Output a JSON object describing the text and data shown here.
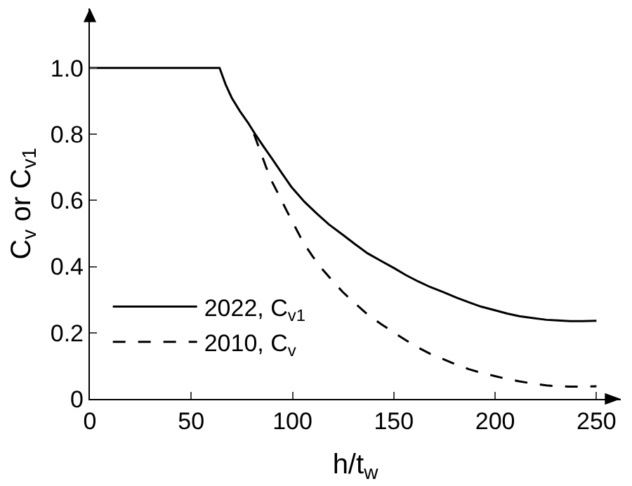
{
  "chart_data": {
    "type": "line",
    "xlabel": "h/t$_{w}$",
    "ylabel": "C$_{v}$ or C$_{v1}$",
    "xlim": [
      0,
      262
    ],
    "ylim": [
      0,
      1.18
    ],
    "xticks": [
      0,
      50,
      100,
      150,
      200,
      250
    ],
    "yticks": [
      0,
      {
        "value": 0.2,
        "label": "0.2"
      },
      {
        "value": 0.4,
        "label": "0.4"
      },
      {
        "value": 0.6,
        "label": "0.6"
      },
      {
        "value": 0.8,
        "label": "0.8"
      },
      {
        "value": 1.0,
        "label": "1.0"
      }
    ],
    "legend": "bottom left",
    "marker": "none",
    "series": [
      {
        "name": "2022, C$_{v1}$",
        "color": "#000000",
        "line_style": "solid",
        "x": [
          0,
          64,
          67,
          70,
          74,
          78,
          81.6,
          86,
          90,
          95,
          99.4,
          106,
          112,
          118,
          124.8,
          131,
          137,
          144,
          150.2,
          156,
          162,
          168,
          174.4,
          181,
          187,
          193,
          199.9,
          206,
          212,
          219,
          225.3,
          231,
          237,
          243,
          250
        ],
        "values": [
          1.0,
          1.0,
          0.95,
          0.91,
          0.87,
          0.835,
          0.8,
          0.76,
          0.725,
          0.68,
          0.641,
          0.595,
          0.56,
          0.527,
          0.496,
          0.467,
          0.44,
          0.416,
          0.395,
          0.374,
          0.355,
          0.338,
          0.323,
          0.306,
          0.292,
          0.279,
          0.268,
          0.258,
          0.25,
          0.244,
          0.239,
          0.237,
          0.235,
          0.235,
          0.236
        ]
      },
      {
        "name": "2010, C$_{v}$",
        "color": "#000000",
        "line_style": "dashed",
        "x": [
          81,
          84,
          87,
          90,
          93.6,
          97,
          100,
          105.1,
          110,
          115,
          120,
          124.8,
          131,
          137,
          144,
          150.2,
          156,
          162,
          168,
          174.4,
          181,
          187,
          193,
          199.9,
          206,
          212,
          219,
          225.3,
          231,
          237,
          243,
          250
        ],
        "values": [
          0.8,
          0.75,
          0.7,
          0.655,
          0.612,
          0.57,
          0.535,
          0.475,
          0.43,
          0.39,
          0.355,
          0.323,
          0.288,
          0.255,
          0.225,
          0.2,
          0.177,
          0.155,
          0.136,
          0.12,
          0.103,
          0.09,
          0.079,
          0.069,
          0.06,
          0.053,
          0.046,
          0.041,
          0.038,
          0.037,
          0.037,
          0.038
        ]
      }
    ]
  }
}
